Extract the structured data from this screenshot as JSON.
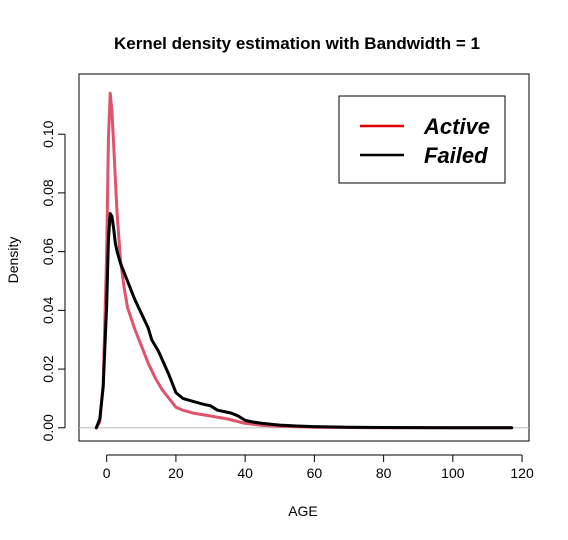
{
  "chart_data": {
    "type": "line",
    "title": "Kernel density estimation with Bandwidth = 1",
    "xlabel": "AGE",
    "ylabel": "Density",
    "xlim": [
      -8,
      122
    ],
    "ylim": [
      -0.0045,
      0.1205
    ],
    "xticks": [
      0,
      20,
      40,
      60,
      80,
      100,
      120
    ],
    "yticks": [
      0.0,
      0.02,
      0.04,
      0.06,
      0.08,
      0.1
    ],
    "ytick_labels": [
      "0.00",
      "0.02",
      "0.04",
      "0.06",
      "0.08",
      "0.10"
    ],
    "baseline": 0,
    "baseline_color": "#bebebe",
    "legend": {
      "position": "top-right",
      "entries": [
        "Active",
        "Failed"
      ]
    },
    "series": [
      {
        "name": "Active",
        "color": "#df536b",
        "legend_color": "#e00000",
        "x": [
          -3,
          -2,
          -1,
          0,
          0.5,
          1,
          1.5,
          2,
          2.5,
          3,
          4,
          5,
          6,
          8,
          10,
          12,
          14,
          16,
          18,
          20,
          22,
          25,
          30,
          35,
          40,
          45,
          50,
          60,
          70,
          80,
          100,
          117
        ],
        "y": [
          0.0,
          0.002,
          0.015,
          0.06,
          0.098,
          0.114,
          0.108,
          0.097,
          0.085,
          0.073,
          0.057,
          0.048,
          0.041,
          0.034,
          0.028,
          0.022,
          0.017,
          0.013,
          0.01,
          0.007,
          0.006,
          0.005,
          0.004,
          0.003,
          0.0015,
          0.0008,
          0.0005,
          0.0002,
          0.0001,
          0.0,
          0.0,
          0.0
        ]
      },
      {
        "name": "Failed",
        "color": "#000000",
        "legend_color": "#000000",
        "x": [
          -3,
          -2,
          -1,
          0,
          0.5,
          1,
          1.5,
          2,
          2.5,
          3,
          4,
          5,
          6,
          8,
          10,
          12,
          13,
          15,
          18,
          20,
          22,
          25,
          28,
          30,
          32,
          34,
          36,
          38,
          40,
          42,
          45,
          50,
          55,
          60,
          70,
          80,
          100,
          117
        ],
        "y": [
          0.0,
          0.003,
          0.014,
          0.042,
          0.064,
          0.073,
          0.072,
          0.068,
          0.063,
          0.06,
          0.056,
          0.053,
          0.05,
          0.044,
          0.039,
          0.034,
          0.03,
          0.026,
          0.018,
          0.012,
          0.01,
          0.009,
          0.008,
          0.0075,
          0.006,
          0.0055,
          0.005,
          0.004,
          0.0025,
          0.002,
          0.0015,
          0.0009,
          0.0006,
          0.0004,
          0.0002,
          0.0001,
          0.0,
          0.0
        ]
      }
    ]
  }
}
